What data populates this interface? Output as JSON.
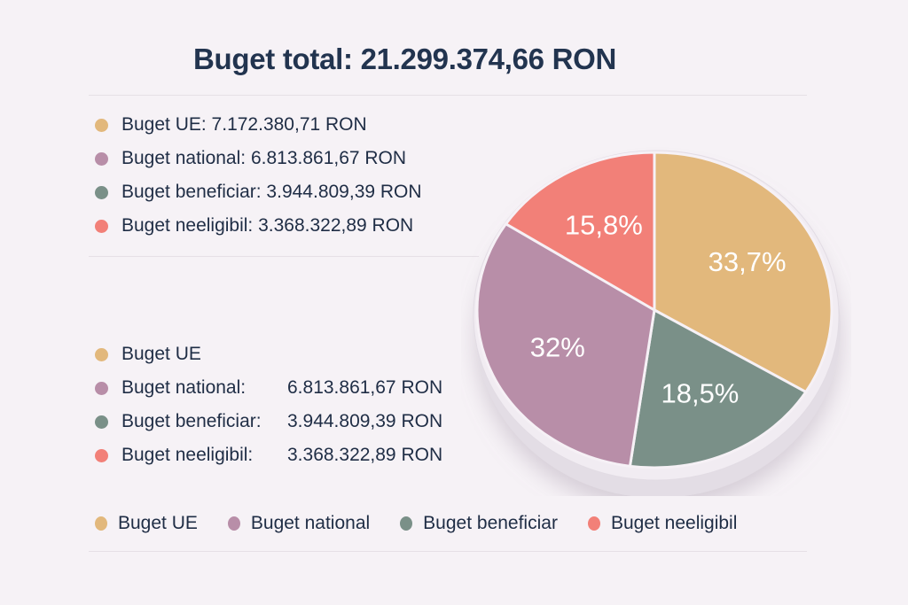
{
  "header": {
    "title": "Buget total: 21.299.374,66 RON"
  },
  "colors": {
    "ue": "#e2b87c",
    "national": "#b88ea8",
    "beneficiar": "#7a9088",
    "neeligibil": "#f28078"
  },
  "legend_top": [
    {
      "key": "ue",
      "text": "Buget UE: 7.172.380,71 RON"
    },
    {
      "key": "national",
      "text": "Buget national: 6.813.861,67 RON"
    },
    {
      "key": "beneficiar",
      "text": "Buget beneficiar: 3.944.809,39 RON"
    },
    {
      "key": "neeligibil",
      "text": "Buget neeligibil: 3.368.322,89 RON"
    }
  ],
  "legend_middle": [
    {
      "key": "ue",
      "label": "Buget UE",
      "value": ""
    },
    {
      "key": "national",
      "label": "Buget national:",
      "value": "6.813.861,67 RON"
    },
    {
      "key": "beneficiar",
      "label": "Buget beneficiar:",
      "value": "3.944.809,39 RON"
    },
    {
      "key": "neeligibil",
      "label": "Buget neeligibil:",
      "value": "3.368.322,89 RON"
    }
  ],
  "legend_bottom": [
    {
      "key": "ue",
      "label": "Buget UE"
    },
    {
      "key": "national",
      "label": "Buget national"
    },
    {
      "key": "beneficiar",
      "label": "Buget beneficiar"
    },
    {
      "key": "neeligibil",
      "label": "Buget neeligibil"
    }
  ],
  "chart_data": {
    "type": "pie",
    "title": "Buget total: 21.299.374,66 RON",
    "slices": [
      {
        "key": "ue",
        "name": "Buget UE",
        "value": 7172380.71,
        "label": "33,7%",
        "percent": 33.7
      },
      {
        "key": "beneficiar",
        "name": "Buget beneficiar",
        "value": 3944809.39,
        "label": "18,5%",
        "percent": 18.5
      },
      {
        "key": "national",
        "name": "Buget national",
        "value": 6813861.67,
        "label": "32%",
        "percent": 32.0
      },
      {
        "key": "neeligibil",
        "name": "Buget neeligibil",
        "value": 3368322.89,
        "label": "15,8%",
        "percent": 15.8
      }
    ],
    "start": "top",
    "direction": "clockwise",
    "legend": "left"
  }
}
